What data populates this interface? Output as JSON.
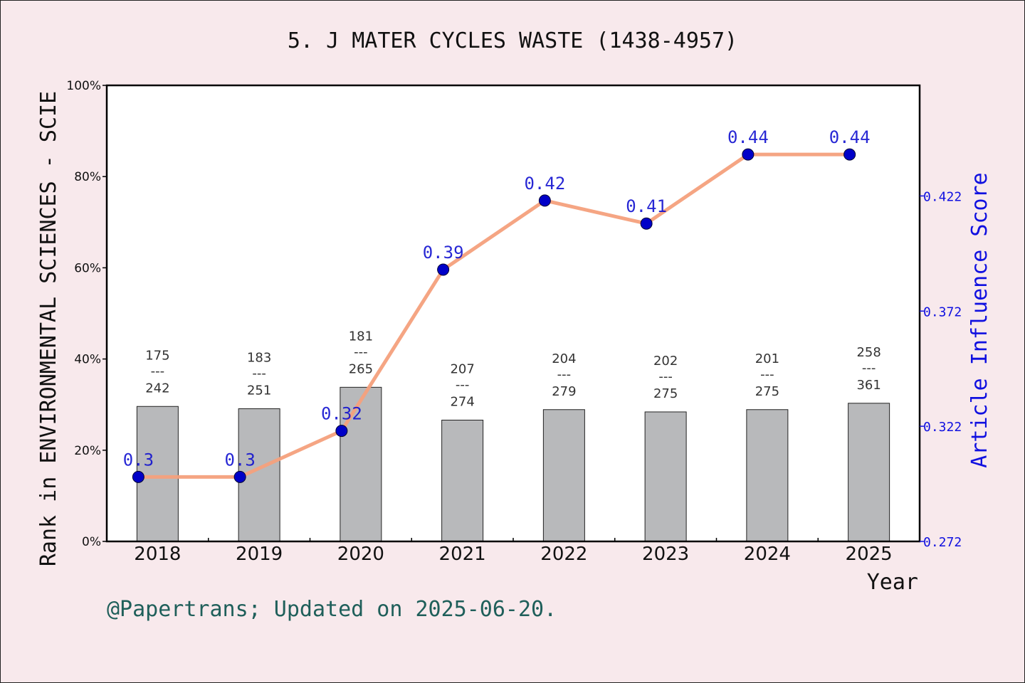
{
  "chart_data": {
    "type": "bar",
    "title": "5. J MATER CYCLES WASTE (1438-4957)",
    "xlabel": "Year",
    "ylabel": "Rank in ENVIRONMENTAL SCIENCES - SCIE",
    "y2label": "Article Influence Score",
    "categories": [
      "2018",
      "2019",
      "2020",
      "2021",
      "2022",
      "2023",
      "2024",
      "2025"
    ],
    "ylim": [
      0,
      100
    ],
    "y_ticks": [
      "0%",
      "20%",
      "40%",
      "60%",
      "80%",
      "100%"
    ],
    "y2lim": [
      0.272,
      0.47
    ],
    "y2_ticks": [
      "0.272",
      "0.322",
      "0.372",
      "0.422"
    ],
    "y2_tick_values": [
      0.272,
      0.322,
      0.372,
      0.422
    ],
    "series": [
      {
        "type": "bar",
        "values": [
          29.6,
          29.1,
          33.8,
          26.6,
          28.9,
          28.4,
          28.9,
          30.3
        ],
        "rank": [
          "175",
          "183",
          "181",
          "207",
          "204",
          "202",
          "201",
          "258"
        ],
        "total": [
          "242",
          "251",
          "265",
          "274",
          "279",
          "275",
          "275",
          "361"
        ],
        "separator": "---",
        "color": "#b8b9bb"
      },
      {
        "type": "line",
        "axis": "right",
        "values": [
          0.3,
          0.3,
          0.32,
          0.39,
          0.42,
          0.41,
          0.44,
          0.44
        ],
        "labels": [
          "0.3",
          "0.3",
          "0.32",
          "0.39",
          "0.42",
          "0.41",
          "0.44",
          "0.44"
        ],
        "line_color": "#f4a07c",
        "marker_color": "#0000c8"
      }
    ],
    "grid": false,
    "footer": "@Papertrans; Updated on 2025-06-20."
  }
}
